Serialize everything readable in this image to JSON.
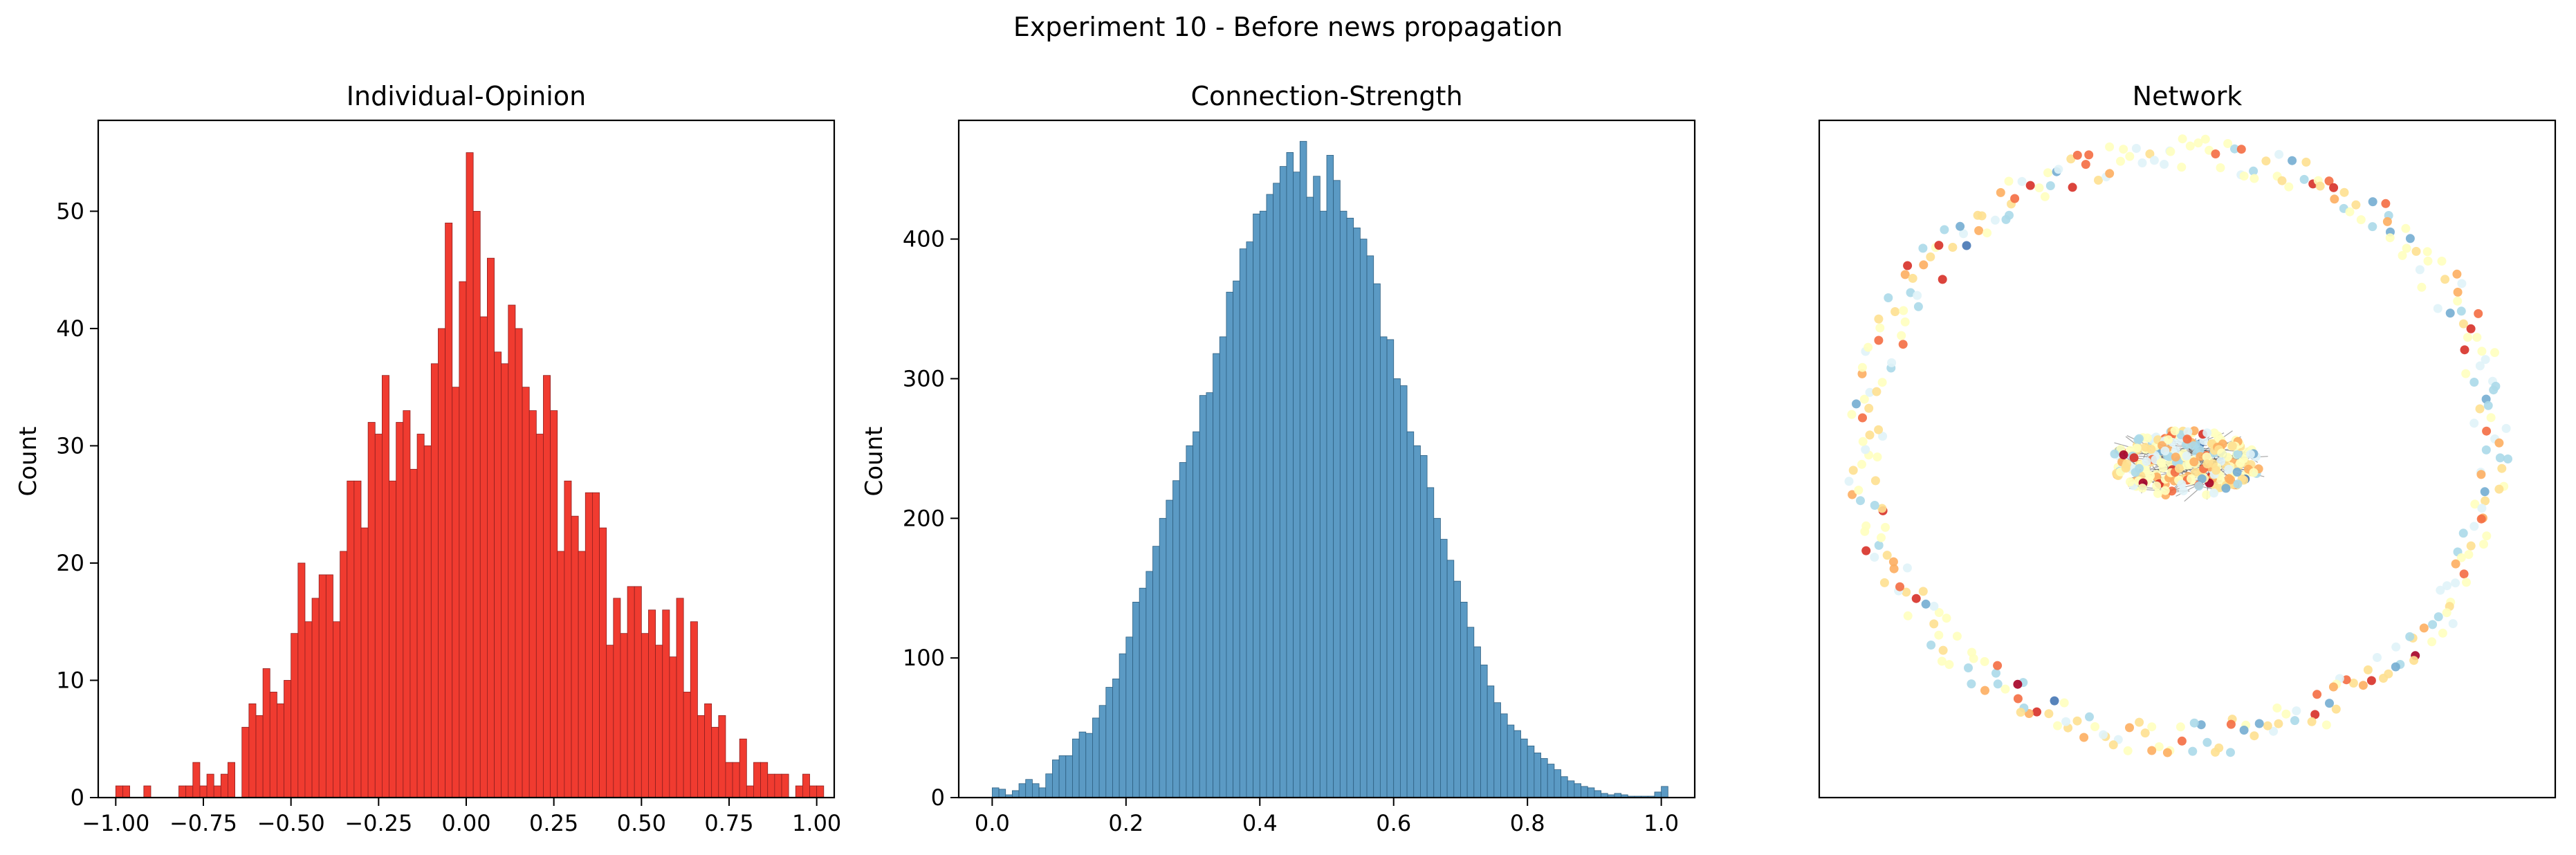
{
  "figure": {
    "title": "Experiment 10 - Before news propagation"
  },
  "chart_data": [
    {
      "type": "bar",
      "title": "Individual-Opinion",
      "xlabel": "",
      "ylabel": "Count",
      "xlim": [
        -1.05,
        1.05
      ],
      "ylim": [
        0,
        57.75
      ],
      "x_ticks": [
        -1.0,
        -0.75,
        -0.5,
        -0.25,
        0.0,
        0.25,
        0.5,
        0.75,
        1.0
      ],
      "x_tick_labels": [
        "−1.00",
        "−0.75",
        "−0.50",
        "−0.25",
        "0.00",
        "0.25",
        "0.50",
        "0.75",
        "1.00"
      ],
      "y_ticks": [
        0,
        10,
        20,
        30,
        40,
        50
      ],
      "y_tick_labels": [
        "0",
        "10",
        "20",
        "30",
        "40",
        "50"
      ],
      "bin_start": -1.0,
      "bin_width": 0.02,
      "values": [
        1,
        1,
        0,
        0,
        1,
        0,
        0,
        0,
        0,
        1,
        1,
        3,
        1,
        2,
        1,
        2,
        3,
        0,
        6,
        8,
        7,
        11,
        9,
        8,
        10,
        14,
        20,
        15,
        17,
        19,
        19,
        15,
        21,
        27,
        27,
        23,
        32,
        31,
        36,
        27,
        32,
        33,
        28,
        31,
        30,
        37,
        40,
        49,
        35,
        44,
        55,
        50,
        41,
        46,
        38,
        37,
        42,
        40,
        35,
        33,
        31,
        36,
        33,
        21,
        27,
        24,
        21,
        26,
        26,
        23,
        13,
        17,
        14,
        18,
        18,
        14,
        16,
        13,
        16,
        12,
        17,
        9,
        15,
        7,
        8,
        6,
        7,
        3,
        3,
        5,
        1,
        3,
        3,
        2,
        2,
        2,
        0,
        1,
        2,
        1,
        1
      ]
    },
    {
      "type": "bar",
      "title": "Connection-Strength",
      "xlabel": "",
      "ylabel": "Count",
      "xlim": [
        -0.05,
        1.05
      ],
      "ylim": [
        0,
        485
      ],
      "x_ticks": [
        0.0,
        0.2,
        0.4,
        0.6,
        0.8,
        1.0
      ],
      "x_tick_labels": [
        "0.0",
        "0.2",
        "0.4",
        "0.6",
        "0.8",
        "1.0"
      ],
      "y_ticks": [
        0,
        100,
        200,
        300,
        400
      ],
      "y_tick_labels": [
        "0",
        "100",
        "200",
        "300",
        "400"
      ],
      "bin_start": 0.0,
      "bin_width": 0.01,
      "values": [
        7,
        6,
        2,
        5,
        10,
        13,
        10,
        7,
        17,
        27,
        30,
        30,
        42,
        47,
        46,
        57,
        66,
        79,
        85,
        103,
        115,
        140,
        150,
        162,
        180,
        200,
        213,
        227,
        240,
        252,
        262,
        288,
        290,
        318,
        330,
        362,
        370,
        393,
        398,
        418,
        420,
        432,
        440,
        452,
        462,
        448,
        470,
        430,
        445,
        420,
        460,
        442,
        420,
        415,
        408,
        400,
        388,
        368,
        330,
        328,
        300,
        295,
        262,
        252,
        245,
        222,
        200,
        185,
        170,
        155,
        140,
        122,
        108,
        95,
        80,
        68,
        60,
        52,
        48,
        42,
        37,
        32,
        28,
        24,
        20,
        15,
        12,
        10,
        8,
        7,
        5,
        3,
        2,
        3,
        2,
        1,
        1,
        1,
        1,
        4,
        8
      ]
    }
  ],
  "network": {
    "title": "Network"
  },
  "colors": {
    "opinion_bar_fill": "#f03b30",
    "opinion_bar_edge": "#8e1f1f",
    "strength_bar_fill": "#5b9ac4",
    "strength_bar_edge": "#2e5f80",
    "axis": "#000000",
    "edge_line": "#3a3a3a",
    "node_palette": [
      "#a50026",
      "#d73027",
      "#f46d43",
      "#fdae61",
      "#fee090",
      "#ffffbf",
      "#e0f3f8",
      "#abd9e9",
      "#74add1",
      "#4575b4"
    ]
  }
}
